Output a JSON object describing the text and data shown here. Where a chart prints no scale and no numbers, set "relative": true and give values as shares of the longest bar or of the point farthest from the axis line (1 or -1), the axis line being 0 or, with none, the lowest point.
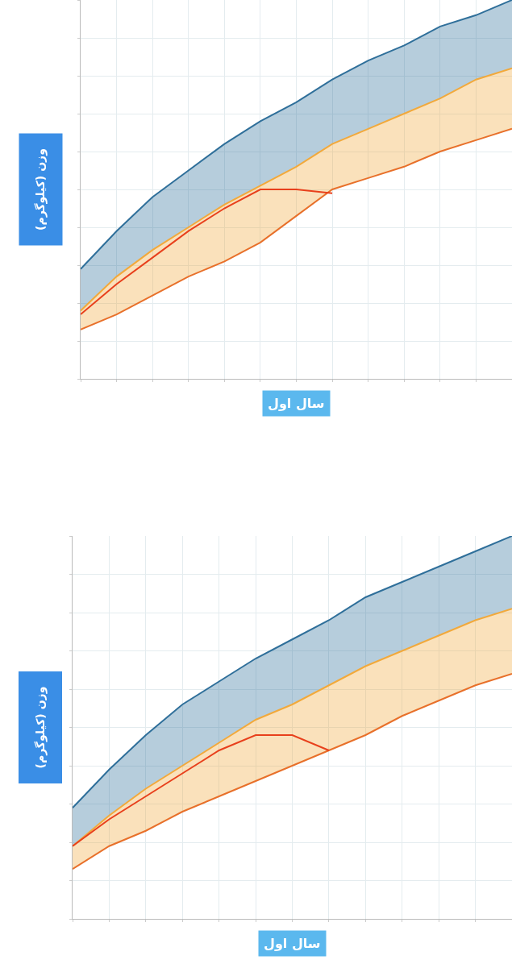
{
  "chart_data": [
    {
      "type": "line",
      "relative": true,
      "xlabel": "سال اول",
      "ylabel": "وزن (کیلوگرم)",
      "categories": [
        null,
        null,
        null,
        null,
        null,
        null,
        null,
        null,
        null,
        null,
        null,
        null,
        null
      ],
      "grid": true,
      "marker": "none",
      "series": [
        {
          "color": "#e8702a",
          "values": [
            0.13,
            0.17,
            0.22,
            0.27,
            0.31,
            0.36,
            0.43,
            0.5,
            0.53,
            0.56,
            0.6,
            0.63,
            0.66
          ]
        },
        {
          "type": "area",
          "color": "#f2a93b",
          "values": [
            0.18,
            0.27,
            0.34,
            0.4,
            0.46,
            0.51,
            0.56,
            0.62,
            0.66,
            0.7,
            0.74,
            0.79,
            0.82
          ]
        },
        {
          "type": "area",
          "color": "#2f6f9a",
          "values": [
            0.29,
            0.39,
            0.48,
            0.55,
            0.62,
            0.68,
            0.73,
            0.79,
            0.84,
            0.88,
            0.93,
            0.96,
            1
          ]
        },
        {
          "color": "#e8401c",
          "values": [
            0.17,
            0.25,
            0.32,
            0.39,
            0.45,
            0.5,
            0.5,
            0.49,
            null,
            null,
            null,
            null,
            null
          ]
        }
      ]
    },
    {
      "type": "line",
      "relative": true,
      "xlabel": "سال اول",
      "ylabel": "وزن (کیلوگرم)",
      "categories": [
        null,
        null,
        null,
        null,
        null,
        null,
        null,
        null,
        null,
        null,
        null,
        null,
        null
      ],
      "grid": true,
      "marker": "none",
      "series": [
        {
          "color": "#e8702a",
          "values": [
            0.13,
            0.19,
            0.23,
            0.28,
            0.32,
            0.36,
            0.4,
            0.44,
            0.48,
            0.53,
            0.57,
            0.61,
            0.64
          ]
        },
        {
          "type": "area",
          "color": "#f2a93b",
          "values": [
            0.19,
            0.27,
            0.34,
            0.4,
            0.46,
            0.52,
            0.56,
            0.61,
            0.66,
            0.7,
            0.74,
            0.78,
            0.81
          ]
        },
        {
          "type": "area",
          "color": "#2f6f9a",
          "values": [
            0.29,
            0.39,
            0.48,
            0.56,
            0.62,
            0.68,
            0.73,
            0.78,
            0.84,
            0.88,
            0.92,
            0.96,
            1
          ]
        },
        {
          "color": "#e8401c",
          "values": [
            0.19,
            0.26,
            0.32,
            0.38,
            0.44,
            0.48,
            0.48,
            0.44,
            null,
            null,
            null,
            null,
            null
          ]
        }
      ]
    }
  ]
}
